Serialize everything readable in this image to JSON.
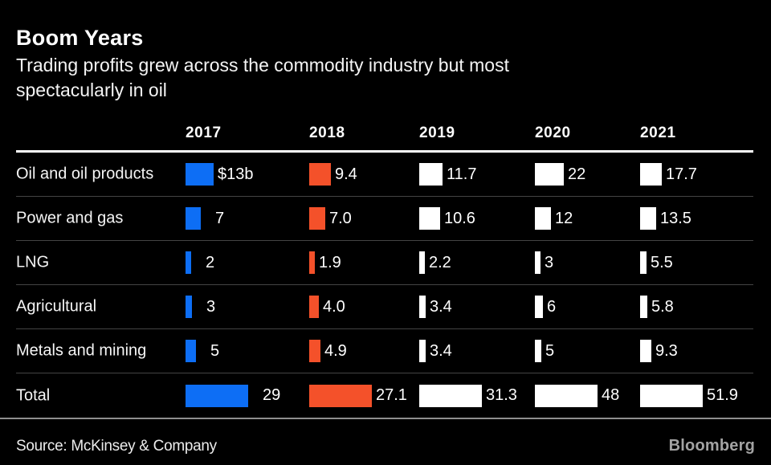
{
  "title": "Boom Years",
  "subtitle_lines": [
    "Trading profits grew across the commodity industry but most",
    "spectacularly in oil"
  ],
  "footer": {
    "source": "Source: McKinsey & Company",
    "brand": "Bloomberg"
  },
  "colors": {
    "background": "#000000",
    "bar_2017": "#0d6ef5",
    "bar_2018": "#f4512a",
    "bar_white": "#ffffff",
    "row_separator": "#444444",
    "header_rule": "#ffffff",
    "footer_rule": "#8e8e8e"
  },
  "chart_data": {
    "type": "bar",
    "title": "Boom Years",
    "subtitle": "Trading profits grew across the commodity industry but most spectacularly in oil",
    "orientation": "horizontal-small-multiples",
    "legend_position": "none",
    "grid": "row-separators-only",
    "columns": [
      "2017",
      "2018",
      "2019",
      "2020",
      "2021"
    ],
    "column_colors": {
      "2017": "#0d6ef5",
      "2018": "#f4512a",
      "2019": "#ffffff",
      "2020": "#ffffff",
      "2021": "#ffffff"
    },
    "value_scale_note": "bars scaled per column so each Total bar has equal width",
    "rows": [
      {
        "label": "Oil and oil products",
        "values": [
          13,
          9.4,
          11.7,
          22,
          17.7
        ],
        "display": [
          "$13b",
          "9.4",
          "11.7",
          "22",
          "17.7"
        ],
        "is_total": false
      },
      {
        "label": "Power and gas",
        "values": [
          7,
          7.0,
          10.6,
          12,
          13.5
        ],
        "display": [
          "7",
          "7.0",
          "10.6",
          "12",
          "13.5"
        ],
        "is_total": false
      },
      {
        "label": "LNG",
        "values": [
          2,
          1.9,
          2.2,
          3,
          5.5
        ],
        "display": [
          "2",
          "1.9",
          "2.2",
          "3",
          "5.5"
        ],
        "is_total": false
      },
      {
        "label": "Agricultural",
        "values": [
          3,
          4.0,
          3.4,
          6,
          5.8
        ],
        "display": [
          "3",
          "4.0",
          "3.4",
          "6",
          "5.8"
        ],
        "is_total": false
      },
      {
        "label": "Metals and mining",
        "values": [
          5,
          4.9,
          3.4,
          5,
          9.3
        ],
        "display": [
          "5",
          "4.9",
          "3.4",
          "5",
          "9.3"
        ],
        "is_total": false
      },
      {
        "label": "Total",
        "values": [
          29,
          27.1,
          31.3,
          48,
          51.9
        ],
        "display": [
          "29",
          "27.1",
          "31.3",
          "48",
          "51.9"
        ],
        "is_total": true
      }
    ]
  }
}
